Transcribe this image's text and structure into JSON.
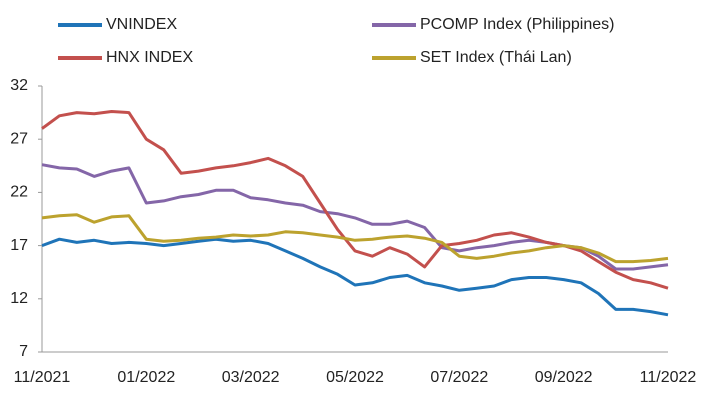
{
  "chart_data": {
    "type": "line",
    "categories": [
      "11/2021",
      null,
      null,
      null,
      null,
      null,
      "01/2022",
      null,
      null,
      null,
      null,
      null,
      "03/2022",
      null,
      null,
      null,
      null,
      null,
      "05/2022",
      null,
      null,
      null,
      null,
      null,
      "07/2022",
      null,
      null,
      null,
      null,
      null,
      "09/2022",
      null,
      null,
      null,
      null,
      null,
      "11/2022"
    ],
    "series": [
      {
        "name": "VNINDEX",
        "color": "#1f74b8",
        "values": [
          17.0,
          17.6,
          17.3,
          17.5,
          17.2,
          17.3,
          17.2,
          17.0,
          17.2,
          17.4,
          17.6,
          17.4,
          17.5,
          17.2,
          16.5,
          15.8,
          15.0,
          14.3,
          13.3,
          13.5,
          14.0,
          14.2,
          13.5,
          13.2,
          12.8,
          13.0,
          13.2,
          13.8,
          14.0,
          14.0,
          13.8,
          13.5,
          12.5,
          11.0,
          11.0,
          10.8,
          10.5
        ]
      },
      {
        "name": "PCOMP Index (Philippines)",
        "color": "#8466a8",
        "values": [
          24.6,
          24.3,
          24.2,
          23.5,
          24.0,
          24.3,
          21.0,
          21.2,
          21.6,
          21.8,
          22.2,
          22.2,
          21.5,
          21.3,
          21.0,
          20.8,
          20.2,
          20.0,
          19.6,
          19.0,
          19.0,
          19.3,
          18.7,
          16.8,
          16.5,
          16.8,
          17.0,
          17.3,
          17.5,
          17.3,
          17.0,
          16.8,
          16.0,
          14.8,
          14.8,
          15.0,
          15.2
        ]
      },
      {
        "name": "HNX INDEX",
        "color": "#c3504d",
        "values": [
          28.0,
          29.2,
          29.5,
          29.4,
          29.6,
          29.5,
          27.0,
          26.0,
          23.8,
          24.0,
          24.3,
          24.5,
          24.8,
          25.2,
          24.5,
          23.5,
          21.0,
          18.5,
          16.5,
          16.0,
          16.8,
          16.2,
          15.0,
          17.0,
          17.2,
          17.5,
          18.0,
          18.2,
          17.8,
          17.3,
          17.0,
          16.5,
          15.5,
          14.5,
          13.8,
          13.5,
          13.0
        ]
      },
      {
        "name": "SET Index (Thái Lan)",
        "color": "#bca22e",
        "values": [
          19.6,
          19.8,
          19.9,
          19.2,
          19.7,
          19.8,
          17.6,
          17.4,
          17.5,
          17.7,
          17.8,
          18.0,
          17.9,
          18.0,
          18.3,
          18.2,
          18.0,
          17.8,
          17.5,
          17.6,
          17.8,
          17.9,
          17.7,
          17.3,
          16.0,
          15.8,
          16.0,
          16.3,
          16.5,
          16.8,
          17.0,
          16.8,
          16.3,
          15.5,
          15.5,
          15.6,
          15.8
        ]
      }
    ],
    "ylim": [
      7,
      32
    ],
    "yticks": [
      7,
      12,
      17,
      22,
      27,
      32
    ],
    "grid": false,
    "legend": "top"
  }
}
